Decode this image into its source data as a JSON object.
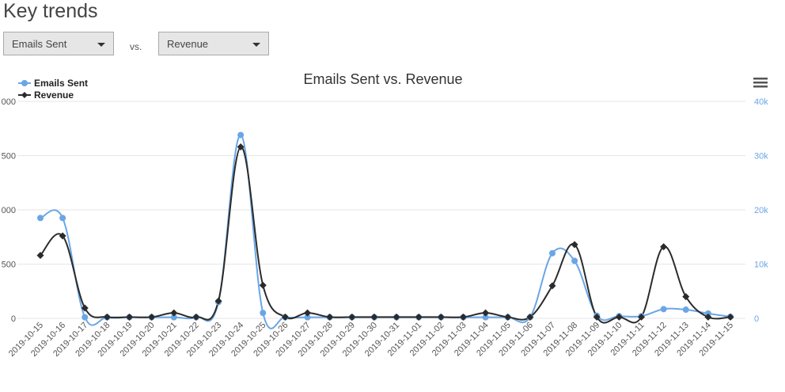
{
  "page": {
    "title": "Key trends"
  },
  "controls": {
    "left_select": "Emails Sent",
    "vs_label": "vs.",
    "right_select": "Revenue"
  },
  "chart_data": {
    "type": "line",
    "title": "Emails Sent vs. Revenue",
    "categories": [
      "2019-10-15",
      "2019-10-16",
      "2019-10-17",
      "2019-10-18",
      "2019-10-19",
      "2019-10-20",
      "2019-10-21",
      "2019-10-22",
      "2019-10-23",
      "2019-10-24",
      "2019-10-25",
      "2019-10-26",
      "2019-10-27",
      "2019-10-28",
      "2019-10-29",
      "2019-10-30",
      "2019-10-31",
      "2019-11-01",
      "2019-11-02",
      "2019-11-03",
      "2019-11-04",
      "2019-11-05",
      "2019-11-06",
      "2019-11-07",
      "2019-11-08",
      "2019-11-09",
      "2019-11-10",
      "2019-11-11",
      "2019-11-12",
      "2019-11-13",
      "2019-11-14",
      "2019-11-15"
    ],
    "series": [
      {
        "name": "Emails Sent",
        "axis": "right",
        "color": "#6aa6e6",
        "marker": "circle",
        "values": [
          18500,
          18500,
          200,
          200,
          200,
          200,
          200,
          200,
          3000,
          33800,
          1000,
          200,
          200,
          200,
          200,
          200,
          200,
          200,
          200,
          200,
          200,
          200,
          200,
          12000,
          10600,
          500,
          400,
          400,
          1700,
          1600,
          900,
          300
        ]
      },
      {
        "name": "Revenue",
        "axis": "left",
        "color": "#2b2b2b",
        "marker": "diamond",
        "values": [
          580,
          760,
          95,
          12,
          12,
          12,
          50,
          12,
          160,
          1580,
          305,
          12,
          50,
          12,
          12,
          12,
          12,
          12,
          12,
          12,
          50,
          12,
          12,
          300,
          680,
          12,
          12,
          12,
          660,
          200,
          12,
          12
        ]
      }
    ],
    "y_left": {
      "ticks": [
        "000",
        "500",
        "000",
        "500",
        "0"
      ],
      "max": 2000
    },
    "y_right": {
      "ticks": [
        "40k",
        "30k",
        "20k",
        "10k",
        "0"
      ],
      "max": 40000
    },
    "legend": {
      "position": "top-left"
    },
    "grid": true
  },
  "icons": {
    "menu": "hamburger-menu-icon"
  }
}
